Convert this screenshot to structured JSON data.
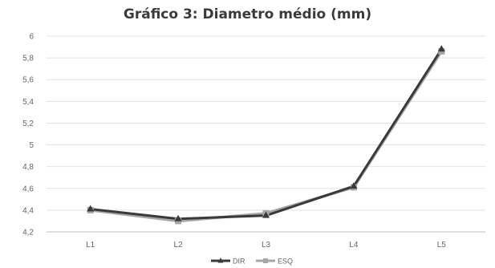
{
  "chart_data": {
    "type": "line",
    "title": "Gráfico 3: Diametro médio (mm)",
    "xlabel": "",
    "ylabel": "",
    "categories": [
      "L1",
      "L2",
      "L3",
      "L4",
      "L5"
    ],
    "series": [
      {
        "name": "DIR",
        "values": [
          4.41,
          4.32,
          4.35,
          4.62,
          5.88
        ],
        "color": "#3a3a3a",
        "marker": "triangle"
      },
      {
        "name": "ESQ",
        "values": [
          4.4,
          4.3,
          4.37,
          4.61,
          5.86
        ],
        "color": "#a6a6a6",
        "marker": "square"
      }
    ],
    "ylim": [
      4.2,
      6
    ],
    "yticks": [
      "4,2",
      "4,4",
      "4,6",
      "4,8",
      "5",
      "5,2",
      "5,4",
      "5,6",
      "5,8",
      "6"
    ],
    "grid": true,
    "legend": "bottom"
  }
}
